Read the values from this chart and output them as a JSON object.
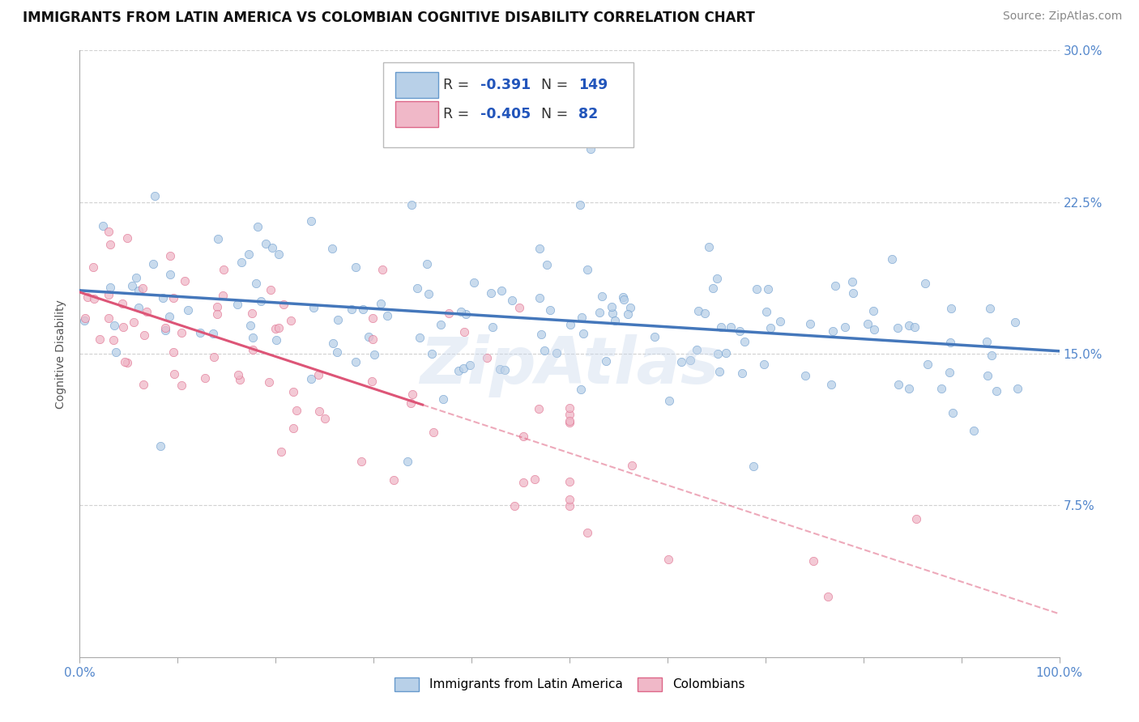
{
  "title": "IMMIGRANTS FROM LATIN AMERICA VS COLOMBIAN COGNITIVE DISABILITY CORRELATION CHART",
  "source": "Source: ZipAtlas.com",
  "ylabel": "Cognitive Disability",
  "legend_bottom": [
    "Immigrants from Latin America",
    "Colombians"
  ],
  "series1": {
    "name": "Immigrants from Latin America",
    "R": -0.391,
    "N": 149,
    "color": "#b8d0e8",
    "edge_color": "#6699cc",
    "line_color": "#4477bb"
  },
  "series2": {
    "name": "Colombians",
    "R": -0.405,
    "N": 82,
    "color": "#f0b8c8",
    "edge_color": "#dd6688",
    "line_color": "#dd5577"
  },
  "xlim": [
    0,
    1
  ],
  "ylim": [
    0,
    0.3
  ],
  "ytick_positions": [
    0.075,
    0.15,
    0.225,
    0.3
  ],
  "ytick_labels": [
    "7.5%",
    "15.0%",
    "22.5%",
    "30.0%"
  ],
  "grid_color": "#cccccc",
  "background_color": "#ffffff",
  "title_fontsize": 12,
  "axis_label_fontsize": 10,
  "tick_fontsize": 11,
  "legend_fontsize": 11,
  "source_fontsize": 10,
  "watermark": "ZipAtlas",
  "watermark_color": "#c8d8ec"
}
